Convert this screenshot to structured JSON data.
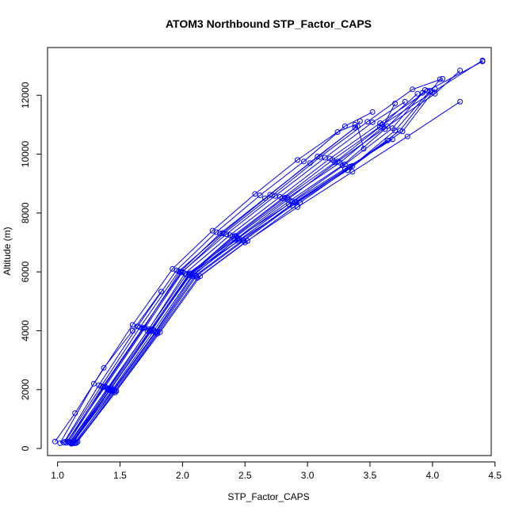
{
  "chart_data": {
    "type": "line",
    "title": "ATOM3 Northbound STP_Factor_CAPS",
    "xlabel": "STP_Factor_CAPS",
    "ylabel": "Altitude (m)",
    "xlim": [
      0.92,
      4.47
    ],
    "ylim": [
      -240,
      13620
    ],
    "x_ticks": [
      1.0,
      1.5,
      2.0,
      2.5,
      3.0,
      3.5,
      4.0,
      4.5
    ],
    "x_tick_labels": [
      "1.0",
      "1.5",
      "2.0",
      "2.5",
      "3.0",
      "3.5",
      "4.0",
      "4.5"
    ],
    "y_ticks": [
      0,
      2000,
      4000,
      6000,
      8000,
      10000,
      12000
    ],
    "y_tick_labels": [
      "0",
      "2000",
      "4000",
      "6000",
      "8000",
      "10000",
      "12000"
    ],
    "grid": false,
    "legend": "none",
    "marker": "open-circle",
    "color": "#0000ff",
    "series": [
      {
        "x": [
          1.12,
          1.42,
          1.75,
          2.05,
          2.4,
          2.8,
          3.2,
          3.6,
          4.0,
          4.4
        ],
        "y": [
          200,
          2000,
          4000,
          5900,
          7200,
          8500,
          9800,
          11000,
          12100,
          13180
        ]
      },
      {
        "x": [
          1.1,
          1.4,
          1.73,
          2.02,
          2.38,
          2.78,
          3.18,
          3.58,
          3.96,
          4.4
        ],
        "y": [
          220,
          2050,
          4050,
          5950,
          7250,
          8550,
          9850,
          11050,
          12150,
          13150
        ]
      },
      {
        "x": [
          1.14,
          1.44,
          1.78,
          2.08,
          2.44,
          2.84,
          3.24,
          3.64,
          4.02,
          4.22
        ],
        "y": [
          180,
          1950,
          3950,
          5850,
          7150,
          8450,
          9750,
          10950,
          12050,
          12840
        ]
      },
      {
        "x": [
          1.08,
          1.38,
          1.7,
          2.0,
          2.33,
          2.72,
          3.1,
          3.48,
          3.84,
          4.08
        ],
        "y": [
          240,
          2100,
          4100,
          6000,
          7300,
          8600,
          9900,
          11100,
          12200,
          12560
        ]
      },
      {
        "x": [
          1.15,
          1.46,
          1.8,
          2.12,
          2.5,
          2.92,
          3.36,
          3.8,
          4.22
        ],
        "y": [
          200,
          1900,
          3900,
          5800,
          7000,
          8200,
          9400,
          10600,
          11780
        ]
      },
      {
        "x": [
          1.11,
          1.4,
          1.72,
          2.03,
          2.42,
          2.85,
          3.3,
          3.68
        ],
        "y": [
          160,
          2000,
          4000,
          5900,
          7100,
          8300,
          9500,
          10500
        ]
      },
      {
        "x": [
          1.13,
          1.43,
          1.76,
          2.06,
          2.45,
          2.88,
          3.32,
          3.64
        ],
        "y": [
          260,
          2050,
          4050,
          5950,
          7050,
          8250,
          9450,
          10460
        ]
      },
      {
        "x": [
          1.09,
          1.37,
          1.69,
          1.98,
          2.3,
          2.66,
          3.02,
          3.38,
          3.42
        ],
        "y": [
          220,
          2100,
          4100,
          6000,
          7300,
          8500,
          9700,
          10900,
          11120
        ]
      },
      {
        "x": [
          1.05,
          1.33,
          1.64,
          1.95,
          2.27,
          2.62,
          2.97,
          3.3,
          3.52
        ],
        "y": [
          200,
          2150,
          4150,
          6050,
          7350,
          8600,
          9750,
          10950,
          11430
        ]
      },
      {
        "x": [
          1.16,
          1.47,
          1.82,
          2.14,
          2.52,
          2.94,
          3.36,
          3.7,
          3.98
        ],
        "y": [
          230,
          1950,
          3950,
          5850,
          7050,
          8350,
          9600,
          10800,
          12150
        ]
      },
      {
        "x": [
          1.02,
          1.29,
          1.6,
          1.92,
          2.24,
          2.58,
          2.92,
          3.24,
          3.38
        ],
        "y": [
          180,
          2200,
          4200,
          6100,
          7400,
          8650,
          9800,
          10750,
          11000
        ]
      },
      {
        "x": [
          0.98,
          1.14,
          1.37,
          1.6,
          1.83
        ],
        "y": [
          240,
          1200,
          2740,
          4000,
          5330
        ]
      },
      {
        "x": [
          1.12,
          1.42,
          1.74,
          2.06,
          2.44,
          2.86,
          3.28,
          3.62,
          3.92
        ],
        "y": [
          170,
          1980,
          3980,
          5880,
          7120,
          8420,
          9620,
          10850,
          12080
        ]
      },
      {
        "x": [
          1.1,
          1.41,
          1.74,
          2.05,
          2.42,
          2.82,
          3.22,
          3.58,
          3.88
        ],
        "y": [
          200,
          2020,
          4020,
          5920,
          7220,
          8520,
          9720,
          10920,
          12050
        ]
      },
      {
        "x": [
          1.14,
          1.45,
          1.79,
          2.1,
          2.48,
          2.9,
          3.34,
          3.76,
          4.02
        ],
        "y": [
          210,
          1970,
          3970,
          5870,
          7070,
          8370,
          9570,
          10770,
          12210
        ]
      },
      {
        "x": [
          1.07,
          1.36,
          1.68,
          1.99,
          2.35,
          2.74,
          3.14,
          3.52,
          3.78
        ],
        "y": [
          190,
          2080,
          4080,
          5980,
          7280,
          8580,
          9880,
          11080,
          11780
        ]
      },
      {
        "x": [
          1.13,
          1.44,
          1.77,
          2.08,
          2.46,
          2.88,
          3.3,
          3.68,
          3.94
        ],
        "y": [
          250,
          2000,
          4000,
          5900,
          7100,
          8400,
          9650,
          10880,
          12180
        ]
      },
      {
        "x": [
          1.11,
          1.42,
          1.75,
          2.06,
          2.43,
          2.84,
          3.26,
          3.6,
          3.7
        ],
        "y": [
          200,
          2010,
          4010,
          5910,
          7210,
          8510,
          9710,
          10910,
          11720
        ]
      },
      {
        "x": [
          1.06,
          1.35,
          1.66,
          1.97,
          2.32,
          2.7,
          3.08,
          3.4,
          3.45
        ],
        "y": [
          230,
          2120,
          4120,
          6020,
          7320,
          8620,
          9920,
          10950,
          10180
        ]
      },
      {
        "x": [
          1.15,
          1.46,
          1.8,
          2.11,
          2.49,
          2.91,
          3.34,
          3.74,
          4.06
        ],
        "y": [
          190,
          1960,
          3960,
          5860,
          7060,
          8360,
          9560,
          10800,
          12540
        ]
      }
    ]
  }
}
